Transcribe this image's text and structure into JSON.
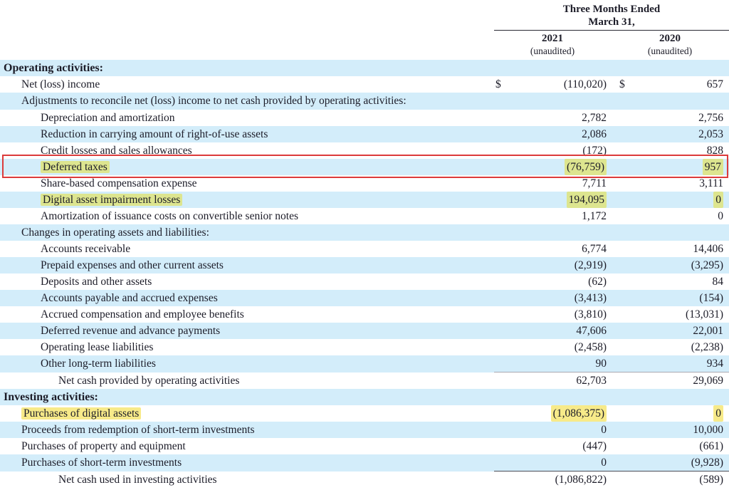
{
  "currency_symbol": "$",
  "header": {
    "period_line1": "Three Months Ended",
    "period_line2": "March 31,",
    "col1": {
      "year": "2021",
      "note": "(unaudited)"
    },
    "col2": {
      "year": "2020",
      "note": "(unaudited)"
    }
  },
  "colors": {
    "row_stripe_blue": "#d3edfa",
    "highlight_yellow": "#f7ea89",
    "highlight_olive": "#dde58f",
    "annotation_red": "#dc3b3b",
    "text": "#1c1c28"
  },
  "rows": [
    {
      "label": "Operating activities:",
      "indent": 0,
      "bold": true,
      "bg": "blue",
      "v2021": "",
      "v2020": ""
    },
    {
      "label": "Net (loss) income",
      "indent": 1,
      "bg": "white",
      "dollar": true,
      "v2021": "(110,020)",
      "v2020": "657"
    },
    {
      "label": "Adjustments to reconcile net (loss) income to net cash provided by operating activities:",
      "indent": 1,
      "bg": "blue",
      "wrap": true,
      "v2021": "",
      "v2020": ""
    },
    {
      "label": "Depreciation and amortization",
      "indent": 2,
      "bg": "white",
      "v2021": "2,782",
      "v2020": "2,756"
    },
    {
      "label": "Reduction in carrying amount of right-of-use assets",
      "indent": 2,
      "bg": "blue",
      "v2021": "2,086",
      "v2020": "2,053"
    },
    {
      "label": "Credit losses and sales allowances",
      "indent": 2,
      "bg": "white",
      "v2021": "(172)",
      "v2020": "828"
    },
    {
      "label": "Deferred taxes",
      "indent": 2,
      "bg": "blue",
      "v2021": "(76,759)",
      "v2020": "957",
      "highlight": true,
      "redbox": true
    },
    {
      "label": "Share-based compensation expense",
      "indent": 2,
      "bg": "white",
      "v2021": "7,711",
      "v2020": "3,111"
    },
    {
      "label": "Digital asset impairment losses",
      "indent": 2,
      "bg": "blue",
      "v2021": "194,095",
      "v2020": "0",
      "highlight": true
    },
    {
      "label": "Amortization of issuance costs on convertible senior notes",
      "indent": 2,
      "bg": "white",
      "v2021": "1,172",
      "v2020": "0"
    },
    {
      "label": "Changes in operating assets and liabilities:",
      "indent": 1,
      "bg": "blue",
      "v2021": "",
      "v2020": ""
    },
    {
      "label": "Accounts receivable",
      "indent": 2,
      "bg": "white",
      "v2021": "6,774",
      "v2020": "14,406"
    },
    {
      "label": "Prepaid expenses and other current assets",
      "indent": 2,
      "bg": "blue",
      "v2021": "(2,919)",
      "v2020": "(3,295)"
    },
    {
      "label": "Deposits and other assets",
      "indent": 2,
      "bg": "white",
      "v2021": "(62)",
      "v2020": "84"
    },
    {
      "label": "Accounts payable and accrued expenses",
      "indent": 2,
      "bg": "blue",
      "v2021": "(3,413)",
      "v2020": "(154)"
    },
    {
      "label": "Accrued compensation and employee benefits",
      "indent": 2,
      "bg": "white",
      "v2021": "(3,810)",
      "v2020": "(13,031)"
    },
    {
      "label": "Deferred revenue and advance payments",
      "indent": 2,
      "bg": "blue",
      "v2021": "47,606",
      "v2020": "22,001"
    },
    {
      "label": "Operating lease liabilities",
      "indent": 2,
      "bg": "white",
      "v2021": "(2,458)",
      "v2020": "(2,238)"
    },
    {
      "label": "Other long-term liabilities",
      "indent": 2,
      "bg": "blue",
      "v2021": "90",
      "v2020": "934",
      "rule": "soft"
    },
    {
      "label": "Net cash provided by operating activities",
      "indent": 3,
      "bg": "white",
      "v2021": "62,703",
      "v2020": "29,069"
    },
    {
      "label": "Investing activities:",
      "indent": 0,
      "bold": true,
      "bg": "blue",
      "v2021": "",
      "v2020": ""
    },
    {
      "label": "Purchases of digital assets",
      "indent": 1,
      "bg": "white",
      "v2021": "(1,086,375)",
      "v2020": "0",
      "highlight": true
    },
    {
      "label": "Proceeds from redemption of short-term investments",
      "indent": 1,
      "bg": "blue",
      "v2021": "0",
      "v2020": "10,000"
    },
    {
      "label": "Purchases of property and equipment",
      "indent": 1,
      "bg": "white",
      "v2021": "(447)",
      "v2020": "(661)"
    },
    {
      "label": "Purchases of short-term investments",
      "indent": 1,
      "bg": "blue",
      "v2021": "0",
      "v2020": "(9,928)",
      "rule": "dark"
    },
    {
      "label": "Net cash used in investing activities",
      "indent": 3,
      "bg": "white",
      "v2021": "(1,086,822)",
      "v2020": "(589)"
    }
  ]
}
